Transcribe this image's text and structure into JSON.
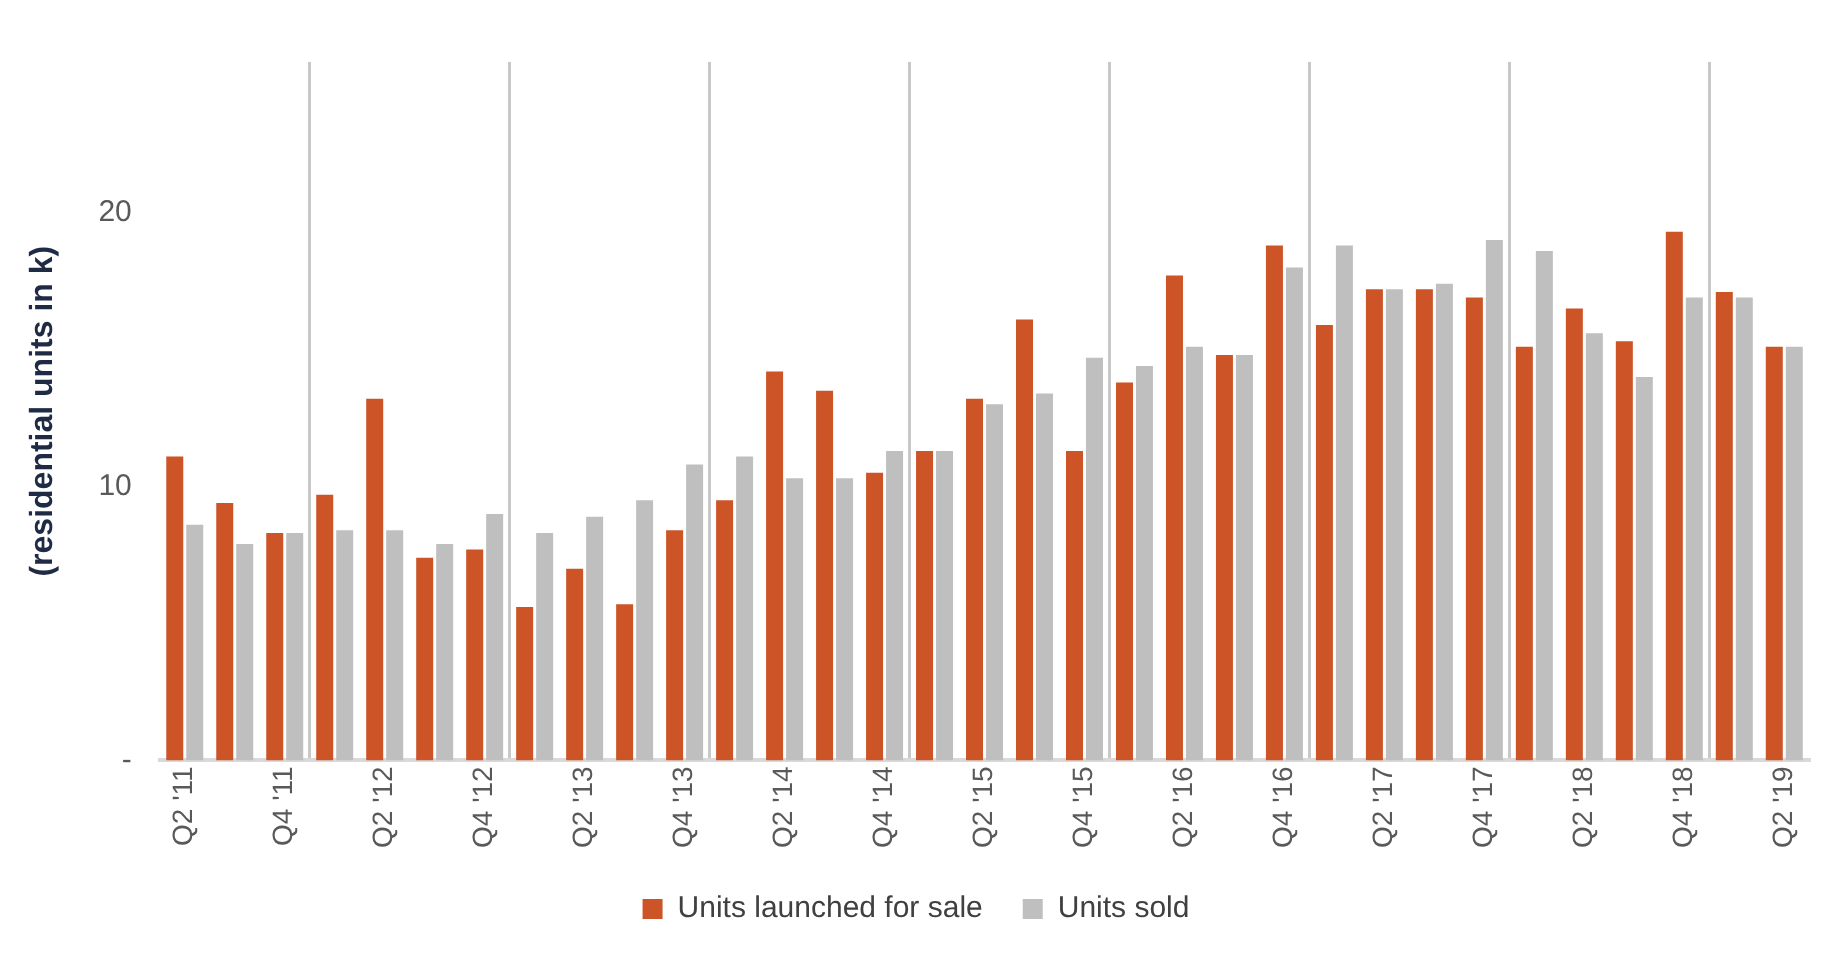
{
  "chart_data": {
    "type": "bar",
    "ylabel": "(residential units in k)",
    "categories": [
      "Q2 '11",
      null,
      "Q4 '11",
      null,
      "Q2 '12",
      null,
      "Q4 '12",
      null,
      "Q2 '13",
      null,
      "Q4 '13",
      null,
      "Q2 '14",
      null,
      "Q4 '14",
      null,
      "Q2 '15",
      null,
      "Q4 '15",
      null,
      "Q2 '16",
      null,
      "Q4 '16",
      null,
      "Q2 '17",
      null,
      "Q4 '17",
      null,
      "Q2 '18",
      null,
      "Q4 '18",
      null,
      "Q2 '19"
    ],
    "series": [
      {
        "name": "Units launched for sale",
        "color": "#cc5427",
        "values": [
          11.1,
          9.4,
          8.3,
          9.7,
          13.2,
          7.4,
          7.7,
          5.6,
          7.0,
          5.7,
          8.4,
          9.5,
          14.2,
          13.5,
          10.5,
          11.3,
          13.2,
          16.1,
          11.3,
          13.8,
          17.7,
          14.8,
          18.8,
          15.9,
          17.2,
          17.2,
          16.9,
          15.1,
          16.5,
          15.3,
          19.3,
          17.1,
          15.1
        ]
      },
      {
        "name": "Units sold",
        "color": "#bfbfbf",
        "values": [
          8.6,
          7.9,
          8.3,
          8.4,
          8.4,
          7.9,
          9.0,
          8.3,
          8.9,
          9.5,
          10.8,
          11.1,
          10.3,
          10.3,
          11.3,
          11.3,
          13.0,
          13.4,
          14.7,
          14.4,
          15.1,
          14.8,
          18.0,
          18.8,
          17.2,
          17.4,
          19.0,
          18.6,
          15.6,
          14.0,
          16.9,
          16.9,
          15.1
        ]
      }
    ],
    "ylim": [
      0,
      25.5
    ],
    "yticks": [
      {
        "value": 0,
        "label": "-"
      },
      10,
      20
    ],
    "grid": "x",
    "legend": "bottom"
  }
}
